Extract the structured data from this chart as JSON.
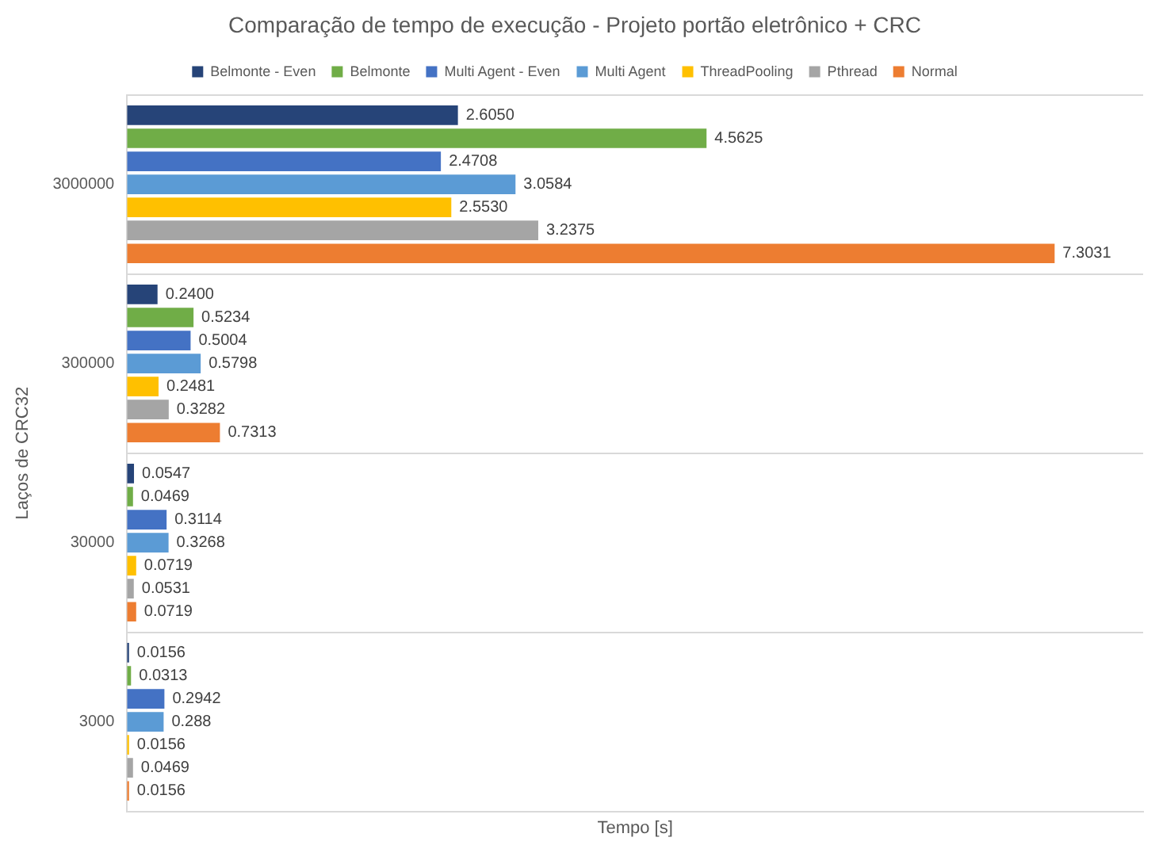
{
  "chart_data": {
    "type": "bar",
    "orientation": "horizontal",
    "title": "Comparação de tempo de execução - Projeto portão eletrônico + CRC",
    "xlabel": "Tempo [s]",
    "ylabel": "Laços de CRC32",
    "categories": [
      "3000000",
      "300000",
      "30000",
      "3000"
    ],
    "grid": "y",
    "legend": "top",
    "tick_labels": "y",
    "series": [
      {
        "name": "Belmonte - Even",
        "color": "#264478",
        "values": [
          2.605,
          0.24,
          0.0547,
          0.0156
        ],
        "value_labels": [
          "2.6050",
          "0.2400",
          "0.0547",
          "0.0156"
        ]
      },
      {
        "name": "Belmonte",
        "color": "#70ad47",
        "values": [
          4.5625,
          0.5234,
          0.0469,
          0.0313
        ],
        "value_labels": [
          "4.5625",
          "0.5234",
          "0.0469",
          "0.0313"
        ]
      },
      {
        "name": "Multi Agent - Even",
        "color": "#4472c4",
        "values": [
          2.4708,
          0.5004,
          0.3114,
          0.2942
        ],
        "value_labels": [
          "2.4708",
          "0.5004",
          "0.3114",
          "0.2942"
        ]
      },
      {
        "name": "Multi Agent",
        "color": "#5b9bd5",
        "values": [
          3.0584,
          0.5798,
          0.3268,
          0.288
        ],
        "value_labels": [
          "3.0584",
          "0.5798",
          "0.3268",
          "0.288"
        ]
      },
      {
        "name": "ThreadPooling",
        "color": "#ffc000",
        "values": [
          2.553,
          0.2481,
          0.0719,
          0.0156
        ],
        "value_labels": [
          "2.5530",
          "0.2481",
          "0.0719",
          "0.0156"
        ]
      },
      {
        "name": "Pthread",
        "color": "#a5a5a5",
        "values": [
          3.2375,
          0.3282,
          0.0531,
          0.0469
        ],
        "value_labels": [
          "3.2375",
          "0.3282",
          "0.0531",
          "0.0469"
        ]
      },
      {
        "name": "Normal",
        "color": "#ed7d31",
        "values": [
          7.3031,
          0.7313,
          0.0719,
          0.0156
        ],
        "value_labels": [
          "7.3031",
          "0.7313",
          "0.0719",
          "0.0156"
        ]
      }
    ]
  }
}
